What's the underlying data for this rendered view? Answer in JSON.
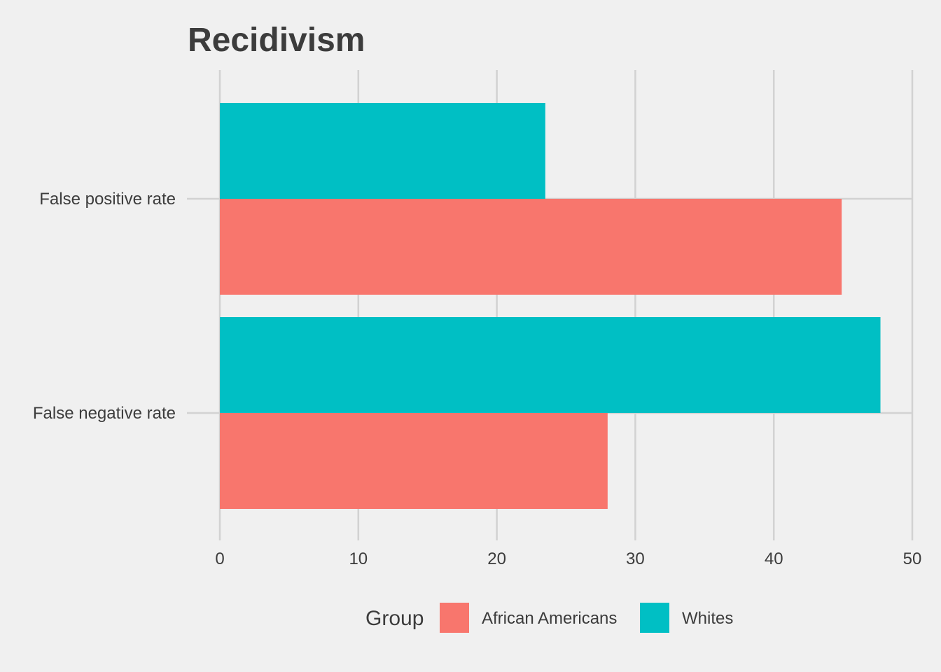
{
  "chart_data": {
    "type": "bar",
    "orientation": "horizontal",
    "title": "Recidivism",
    "categories": [
      "False positive rate",
      "False negative rate"
    ],
    "series": [
      {
        "name": "African Americans",
        "color": "#f8766d",
        "values": [
          44.9,
          28.0
        ]
      },
      {
        "name": "Whites",
        "color": "#00bfc4",
        "values": [
          23.5,
          47.7
        ]
      }
    ],
    "xlim": [
      0,
      50
    ],
    "x_ticks": [
      0,
      10,
      20,
      30,
      40,
      50
    ],
    "grid": true,
    "legend": {
      "title": "Group",
      "placement": "bottom"
    }
  }
}
